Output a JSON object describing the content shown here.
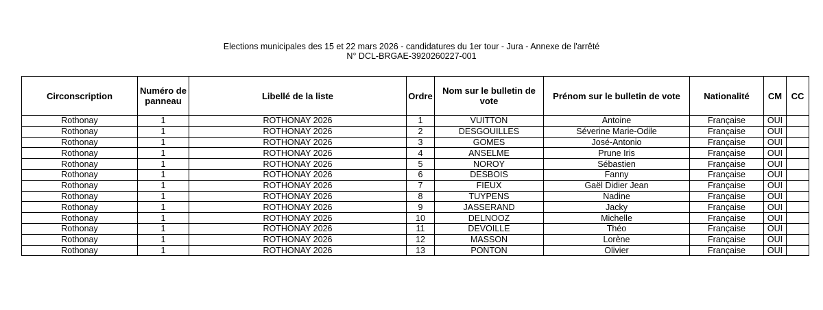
{
  "title_line1": "Elections municipales des 15 et 22 mars 2026 - candidatures du 1er tour - Jura - Annexe de l'arrêté",
  "title_line2": "N° DCL-BRGAE-3920260227-001",
  "headers": [
    "Circonscription",
    "Numéro de panneau",
    "Libellé de la liste",
    "Ordre",
    "Nom sur le bulletin de vote",
    "Prénom sur le bulletin de vote",
    "Nationalité",
    "CM",
    "CC"
  ],
  "rows": [
    [
      "Rothonay",
      "1",
      "ROTHONAY 2026",
      "1",
      "VUITTON",
      "Antoine",
      "Française",
      "OUI",
      ""
    ],
    [
      "Rothonay",
      "1",
      "ROTHONAY 2026",
      "2",
      "DESGOUILLES",
      "Séverine Marie-Odile",
      "Française",
      "OUI",
      ""
    ],
    [
      "Rothonay",
      "1",
      "ROTHONAY 2026",
      "3",
      "GOMES",
      "José-Antonio",
      "Française",
      "OUI",
      ""
    ],
    [
      "Rothonay",
      "1",
      "ROTHONAY 2026",
      "4",
      "ANSELME",
      "Prune Iris",
      "Française",
      "OUI",
      ""
    ],
    [
      "Rothonay",
      "1",
      "ROTHONAY 2026",
      "5",
      "NOROY",
      "Sébastien",
      "Française",
      "OUI",
      ""
    ],
    [
      "Rothonay",
      "1",
      "ROTHONAY 2026",
      "6",
      "DESBOIS",
      "Fanny",
      "Française",
      "OUI",
      ""
    ],
    [
      "Rothonay",
      "1",
      "ROTHONAY 2026",
      "7",
      "FIEUX",
      "Gaël Didier Jean",
      "Française",
      "OUI",
      ""
    ],
    [
      "Rothonay",
      "1",
      "ROTHONAY 2026",
      "8",
      "TUYPENS",
      "Nadine",
      "Française",
      "OUI",
      ""
    ],
    [
      "Rothonay",
      "1",
      "ROTHONAY 2026",
      "9",
      "JASSERAND",
      "Jacky",
      "Française",
      "OUI",
      ""
    ],
    [
      "Rothonay",
      "1",
      "ROTHONAY 2026",
      "10",
      "DELNOOZ",
      "Michelle",
      "Française",
      "OUI",
      ""
    ],
    [
      "Rothonay",
      "1",
      "ROTHONAY 2026",
      "11",
      "DEVOILLE",
      "Théo",
      "Française",
      "OUI",
      ""
    ],
    [
      "Rothonay",
      "1",
      "ROTHONAY 2026",
      "12",
      "MASSON",
      "Lorène",
      "Française",
      "OUI",
      ""
    ],
    [
      "Rothonay",
      "1",
      "ROTHONAY 2026",
      "13",
      "PONTON",
      "Olivier",
      "Française",
      "OUI",
      ""
    ]
  ]
}
